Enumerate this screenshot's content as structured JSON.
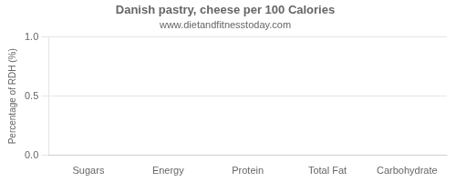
{
  "chart_data": {
    "type": "bar",
    "title": "Danish pastry, cheese per 100 Calories",
    "subtitle": "www.dietandfitnesstoday.com",
    "categories": [
      "Sugars",
      "Energy",
      "Protein",
      "Total Fat",
      "Carbohydrate"
    ],
    "values": [
      0,
      0,
      0,
      0,
      0
    ],
    "color": "#4444cc",
    "ylabel": "Percentage of RDH (%)",
    "ylim": [
      0,
      1.0
    ],
    "yticks": [
      {
        "value": 0.0,
        "label": "0.0"
      },
      0.5,
      {
        "value": 1.0,
        "label": "1.0"
      }
    ],
    "grid": true
  }
}
